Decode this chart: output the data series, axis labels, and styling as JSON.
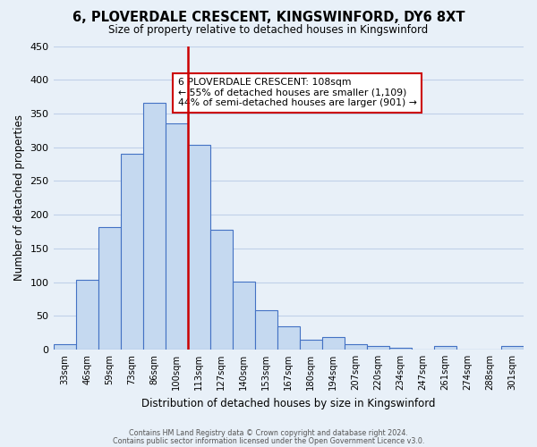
{
  "title": "6, PLOVERDALE CRESCENT, KINGSWINFORD, DY6 8XT",
  "subtitle": "Size of property relative to detached houses in Kingswinford",
  "xlabel": "Distribution of detached houses by size in Kingswinford",
  "ylabel": "Number of detached properties",
  "footer_line1": "Contains HM Land Registry data © Crown copyright and database right 2024.",
  "footer_line2": "Contains public sector information licensed under the Open Government Licence v3.0.",
  "categories": [
    "33sqm",
    "46sqm",
    "59sqm",
    "73sqm",
    "86sqm",
    "100sqm",
    "113sqm",
    "127sqm",
    "140sqm",
    "153sqm",
    "167sqm",
    "180sqm",
    "194sqm",
    "207sqm",
    "220sqm",
    "234sqm",
    "247sqm",
    "261sqm",
    "274sqm",
    "288sqm",
    "301sqm"
  ],
  "values": [
    8,
    103,
    181,
    290,
    366,
    335,
    303,
    177,
    101,
    58,
    35,
    15,
    18,
    8,
    5,
    3,
    0,
    5,
    0,
    0,
    5
  ],
  "bar_color": "#c5d9f0",
  "bar_edge_color": "#4472c4",
  "vline_color": "#cc0000",
  "vline_pos": 5.5,
  "annotation_title": "6 PLOVERDALE CRESCENT: 108sqm",
  "annotation_line1": "← 55% of detached houses are smaller (1,109)",
  "annotation_line2": "44% of semi-detached houses are larger (901) →",
  "annotation_box_color": "#ffffff",
  "annotation_box_edge": "#cc0000",
  "ylim": [
    0,
    450
  ],
  "yticks": [
    0,
    50,
    100,
    150,
    200,
    250,
    300,
    350,
    400,
    450
  ],
  "grid_color": "#c0d0e8",
  "background_color": "#e8f0f8"
}
